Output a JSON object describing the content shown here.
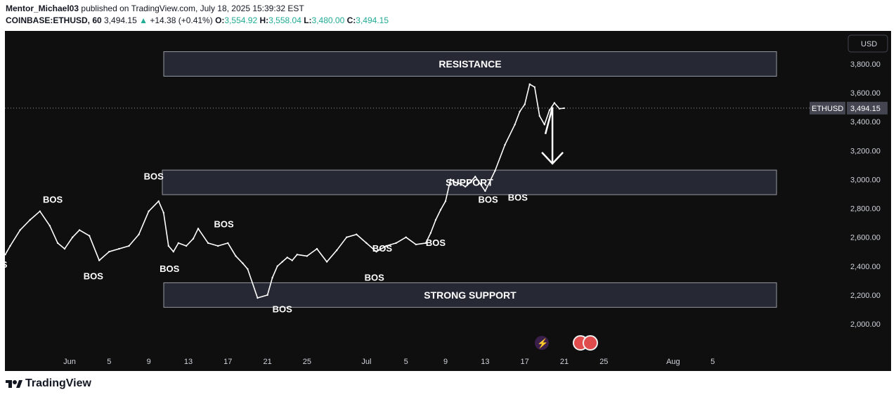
{
  "header": {
    "publisher": "Mentor_Michael03",
    "published_text": "published on TradingView.com, July 18, 2025 15:39:32 EST",
    "symbol": "COINBASE:ETHUSD, 60",
    "last": "3,494.15",
    "change_arrow": "▲",
    "change": "+14.38 (+0.41%)",
    "o_label": "O:",
    "o_value": "3,554.92",
    "h_label": "H:",
    "h_value": "3,558.04",
    "l_label": "L:",
    "l_value": "3,480.00",
    "c_label": "C:",
    "c_value": "3,494.15"
  },
  "footer": {
    "brand": "TradingView"
  },
  "colors": {
    "background": "#0f0f0f",
    "candle": "#ffffff",
    "zone_fill": "#2a2e39",
    "up": "#22ab94"
  },
  "chart_data": {
    "type": "line",
    "currency_label": "USD",
    "ylim": [
      1870,
      3920
    ],
    "y_ticks": [
      "3,800.00",
      "3,600.00",
      "3,400.00",
      "3,200.00",
      "3,000.00",
      "2,800.00",
      "2,600.00",
      "2,400.00",
      "2,200.00",
      "2,000.00"
    ],
    "y_tick_values": [
      3800,
      3600,
      3400,
      3200,
      3000,
      2800,
      2600,
      2400,
      2200,
      2000
    ],
    "x_ticks": [
      "Jun",
      "5",
      "9",
      "13",
      "17",
      "21",
      "25",
      "Jul",
      "5",
      "9",
      "13",
      "17",
      "21",
      "25",
      "Aug",
      "5"
    ],
    "x_tick_days": [
      0,
      4,
      8,
      12,
      16,
      20,
      24,
      30,
      34,
      38,
      42,
      46,
      50,
      54,
      61,
      65
    ],
    "series": [
      {
        "x_days": [
          -6.5,
          -6,
          -5,
          -4,
          -3,
          -2,
          -1.2,
          -0.5,
          0.3,
          1,
          2,
          3,
          4,
          5,
          6,
          7,
          8,
          9,
          9.5,
          10,
          10.5,
          11,
          11.8,
          12.5,
          13,
          14,
          15,
          16,
          16.8,
          17.5,
          18,
          19,
          20,
          20.5,
          21,
          21.5,
          22,
          22.5,
          23,
          24,
          25,
          26,
          27,
          28,
          29,
          30,
          31,
          32,
          33,
          34,
          35,
          36,
          36.5,
          37,
          37.5,
          38,
          38.5,
          39,
          39.5,
          40,
          40.5,
          41,
          42,
          43,
          44,
          45,
          45.5,
          46,
          46.5,
          47,
          47.5,
          48,
          48.5,
          49,
          49.5,
          50
        ],
        "values": [
          2480,
          2540,
          2650,
          2720,
          2780,
          2680,
          2560,
          2520,
          2600,
          2650,
          2610,
          2440,
          2500,
          2520,
          2540,
          2620,
          2780,
          2850,
          2770,
          2540,
          2500,
          2560,
          2540,
          2590,
          2660,
          2560,
          2540,
          2560,
          2470,
          2420,
          2380,
          2180,
          2200,
          2320,
          2400,
          2430,
          2460,
          2440,
          2480,
          2470,
          2520,
          2430,
          2510,
          2600,
          2620,
          2560,
          2500,
          2540,
          2560,
          2600,
          2550,
          2560,
          2630,
          2720,
          2790,
          2850,
          3000,
          2980,
          2970,
          2950,
          2980,
          3020,
          2920,
          3060,
          3240,
          3380,
          3470,
          3520,
          3660,
          3640,
          3440,
          3380,
          3480,
          3530,
          3490,
          3494
        ]
      }
    ],
    "zones": [
      {
        "label": "RESISTANCE",
        "top": 3885,
        "bottom": 3715
      },
      {
        "label": "SUPPORT",
        "top": 3065,
        "bottom": 2895
      },
      {
        "label": "STRONG SUPPORT",
        "top": 2285,
        "bottom": 2115
      }
    ],
    "annotations": [
      {
        "text": "BOS",
        "x_day": -1.7,
        "y": 2840
      },
      {
        "text": "BOS",
        "x_day": 8.5,
        "y": 3000
      },
      {
        "text": "BOS",
        "x_day": 15.6,
        "y": 2670
      },
      {
        "text": "BOS",
        "x_day": 2.4,
        "y": 2310
      },
      {
        "text": "BOS",
        "x_day": 10.1,
        "y": 2360
      },
      {
        "text": "BOS",
        "x_day": 21.5,
        "y": 2080
      },
      {
        "text": "BOS",
        "x_day": 31.6,
        "y": 2500
      },
      {
        "text": "BOS",
        "x_day": 30.8,
        "y": 2300
      },
      {
        "text": "BOS",
        "x_day": 37.0,
        "y": 2540
      },
      {
        "text": "BOS",
        "x_day": 42.3,
        "y": 2840
      },
      {
        "text": "BOS",
        "x_day": 45.3,
        "y": 2855
      },
      {
        "text": "S",
        "x_day": -6.6,
        "y": 2390
      }
    ],
    "price_line": {
      "label": "ETHUSD",
      "value_text": "3,494.15",
      "value": 3494.15
    },
    "arrow": {
      "from_day": 48.8,
      "from_y": 3500,
      "to_day": 48.8,
      "to_y": 3110
    }
  }
}
